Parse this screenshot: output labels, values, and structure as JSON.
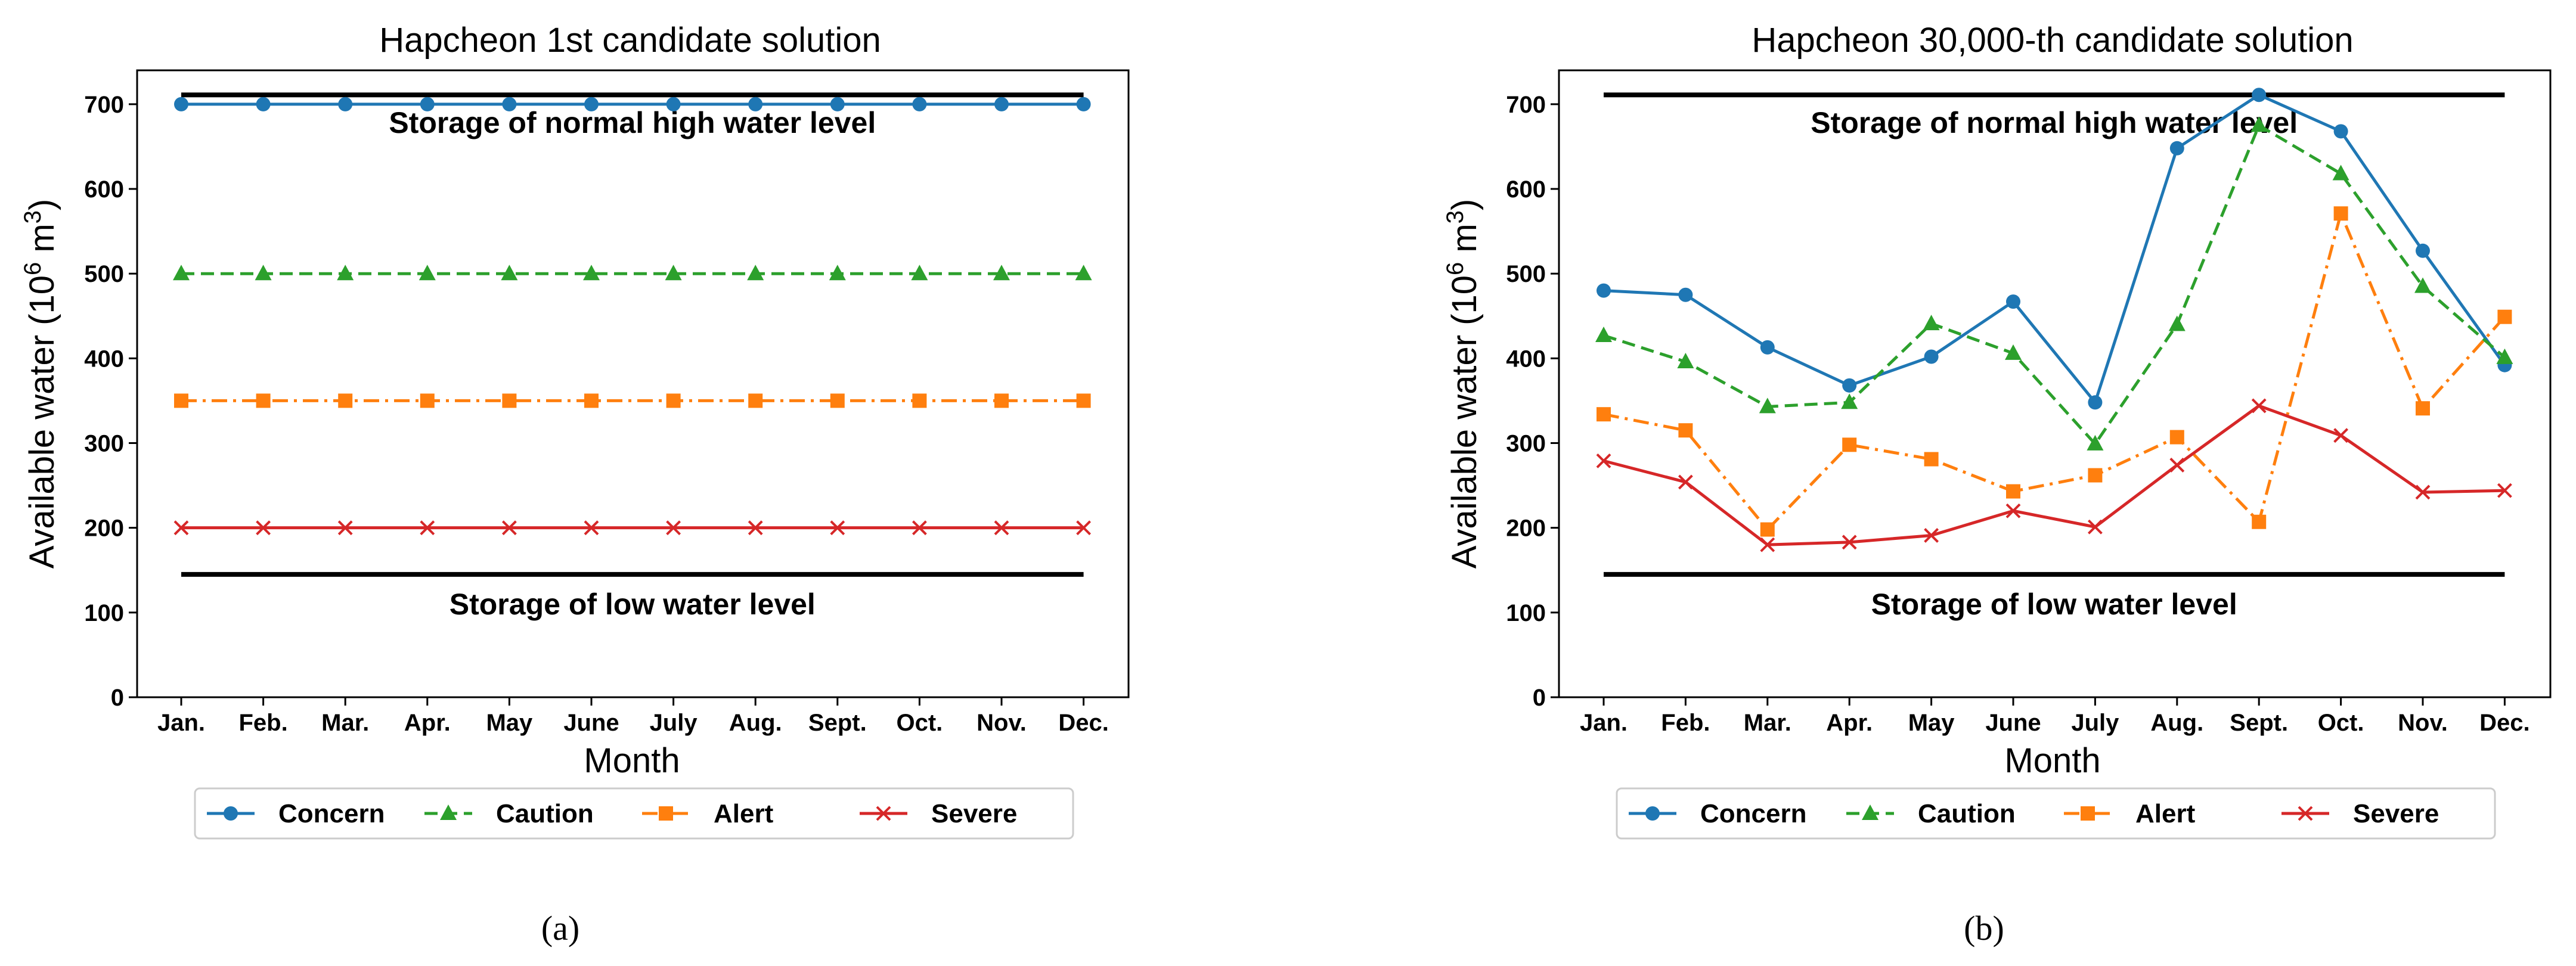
{
  "panels": [
    {
      "caption": "(a)",
      "chart_data": {
        "type": "line",
        "title": "Hapcheon  1st candidate solution",
        "xlabel": "Month",
        "ylabel_text": "Available water (",
        "ylabel_base": "10",
        "ylabel_exp": "6",
        "ylabel_unit": " m",
        "ylabel_unit_exp": "3",
        "ylabel_close": ")",
        "categories": [
          "Jan.",
          "Feb.",
          "Mar.",
          "Apr.",
          "May",
          "June",
          "July",
          "Aug.",
          "Sept.",
          "Oct.",
          "Nov.",
          "Dec."
        ],
        "ylim": [
          0,
          740
        ],
        "yticks": [
          0,
          100,
          200,
          300,
          400,
          500,
          600,
          700
        ],
        "series": [
          {
            "name": "Concern",
            "color": "#1f77b4",
            "marker": "circle",
            "dash": "solid",
            "values": [
              700,
              700,
              700,
              700,
              700,
              700,
              700,
              700,
              700,
              700,
              700,
              700
            ]
          },
          {
            "name": "Caution",
            "color": "#2ca02c",
            "marker": "triangle",
            "dash": "dashed",
            "values": [
              500,
              500,
              500,
              500,
              500,
              500,
              500,
              500,
              500,
              500,
              500,
              500
            ]
          },
          {
            "name": "Alert",
            "color": "#ff7f0e",
            "marker": "square",
            "dash": "dashdot",
            "values": [
              350,
              350,
              350,
              350,
              350,
              350,
              350,
              350,
              350,
              350,
              350,
              350
            ]
          },
          {
            "name": "Severe",
            "color": "#d62728",
            "marker": "x",
            "dash": "solid",
            "values": [
              200,
              200,
              200,
              200,
              200,
              200,
              200,
              200,
              200,
              200,
              200,
              200
            ]
          }
        ],
        "reference_lines": [
          {
            "label": "Storage of normal high water level",
            "value": 711,
            "color": "#000000"
          },
          {
            "label": "Storage of low water level",
            "value": 145,
            "color": "#000000"
          }
        ],
        "legend": "bottom-center"
      }
    },
    {
      "caption": "(b)",
      "chart_data": {
        "type": "line",
        "title": "Hapcheon  30,000-th candidate solution",
        "xlabel": "Month",
        "ylabel_text": "Available water (",
        "ylabel_base": "10",
        "ylabel_exp": "6",
        "ylabel_unit": " m",
        "ylabel_unit_exp": "3",
        "ylabel_close": ")",
        "categories": [
          "Jan.",
          "Feb.",
          "Mar.",
          "Apr.",
          "May",
          "June",
          "July",
          "Aug.",
          "Sept.",
          "Oct.",
          "Nov.",
          "Dec."
        ],
        "ylim": [
          0,
          740
        ],
        "yticks": [
          0,
          100,
          200,
          300,
          400,
          500,
          600,
          700
        ],
        "series": [
          {
            "name": "Concern",
            "color": "#1f77b4",
            "marker": "circle",
            "dash": "solid",
            "values": [
              480,
              475,
              413,
              368,
              402,
              467,
              348,
              648,
              711,
              668,
              527,
              392
            ]
          },
          {
            "name": "Caution",
            "color": "#2ca02c",
            "marker": "triangle",
            "dash": "dashed",
            "values": [
              427,
              396,
              343,
              348,
              441,
              406,
              299,
              440,
              675,
              618,
              485,
              401
            ]
          },
          {
            "name": "Alert",
            "color": "#ff7f0e",
            "marker": "square",
            "dash": "dashdot",
            "values": [
              334,
              315,
              198,
              298,
              281,
              243,
              262,
              307,
              207,
              571,
              341,
              449
            ]
          },
          {
            "name": "Severe",
            "color": "#d62728",
            "marker": "x",
            "dash": "solid",
            "values": [
              279,
              254,
              180,
              183,
              191,
              220,
              201,
              274,
              344,
              309,
              242,
              244
            ]
          }
        ],
        "reference_lines": [
          {
            "label": "Storage of normal high water level",
            "value": 711,
            "color": "#000000"
          },
          {
            "label": "Storage of low water level",
            "value": 145,
            "color": "#000000"
          }
        ],
        "legend": "bottom-center"
      }
    }
  ]
}
